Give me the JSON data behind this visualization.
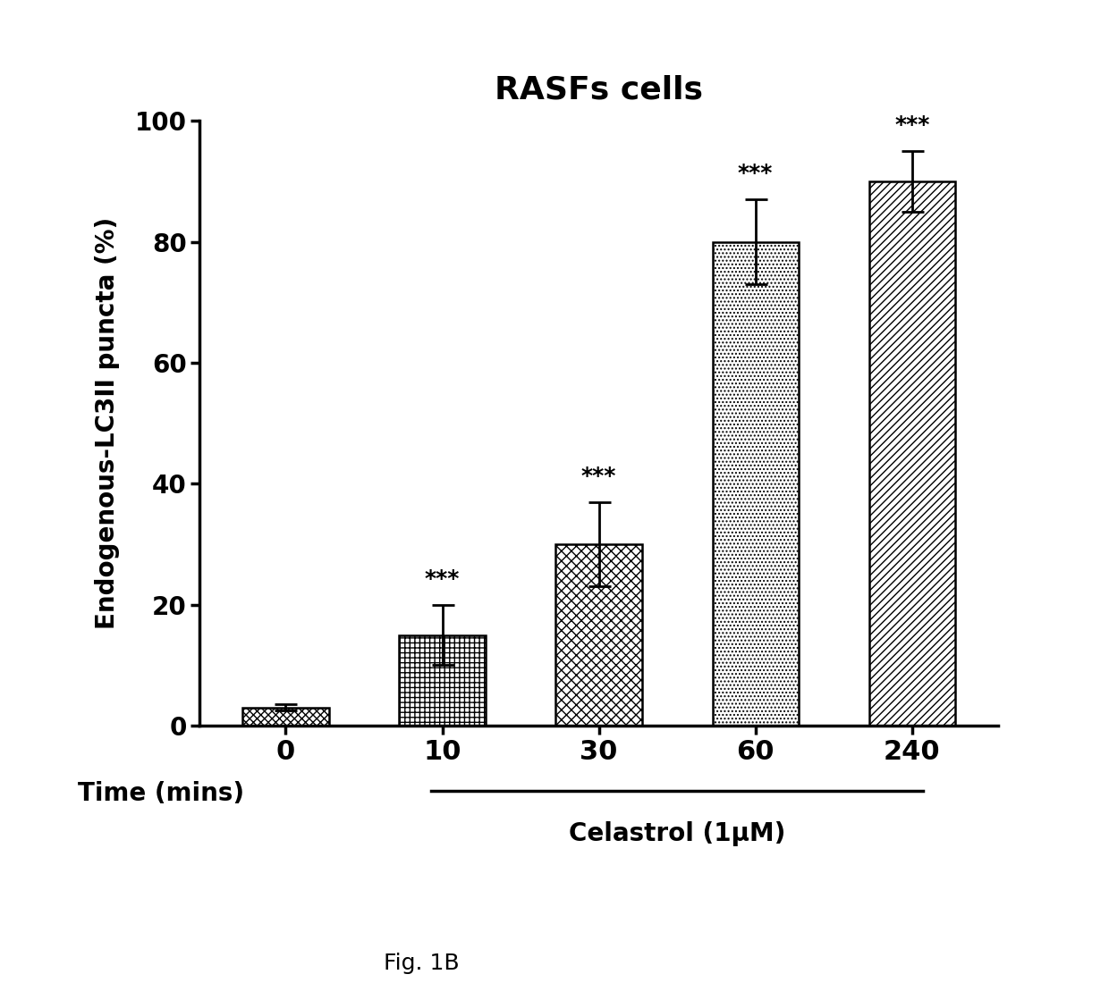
{
  "title": "RASFs cells",
  "xlabel_time": "Time (mins)",
  "xlabel_celastrol": "Celastrol (1μM)",
  "fig_caption": "Fig. 1B",
  "ylabel": "Endogenous-LC3II puncta (%)",
  "categories": [
    "0",
    "10",
    "30",
    "60",
    "240"
  ],
  "values": [
    3,
    15,
    30,
    80,
    90
  ],
  "errors": [
    0.5,
    5,
    7,
    7,
    5
  ],
  "significance": [
    "",
    "***",
    "***",
    "***",
    "***"
  ],
  "ylim": [
    0,
    100
  ],
  "yticks": [
    0,
    20,
    40,
    60,
    80,
    100
  ],
  "bar_width": 0.55,
  "background_color": "#ffffff",
  "bar_edge_color": "#000000",
  "title_fontsize": 26,
  "axis_label_fontsize": 20,
  "tick_fontsize": 20,
  "sig_fontsize": 18,
  "caption_fontsize": 18
}
